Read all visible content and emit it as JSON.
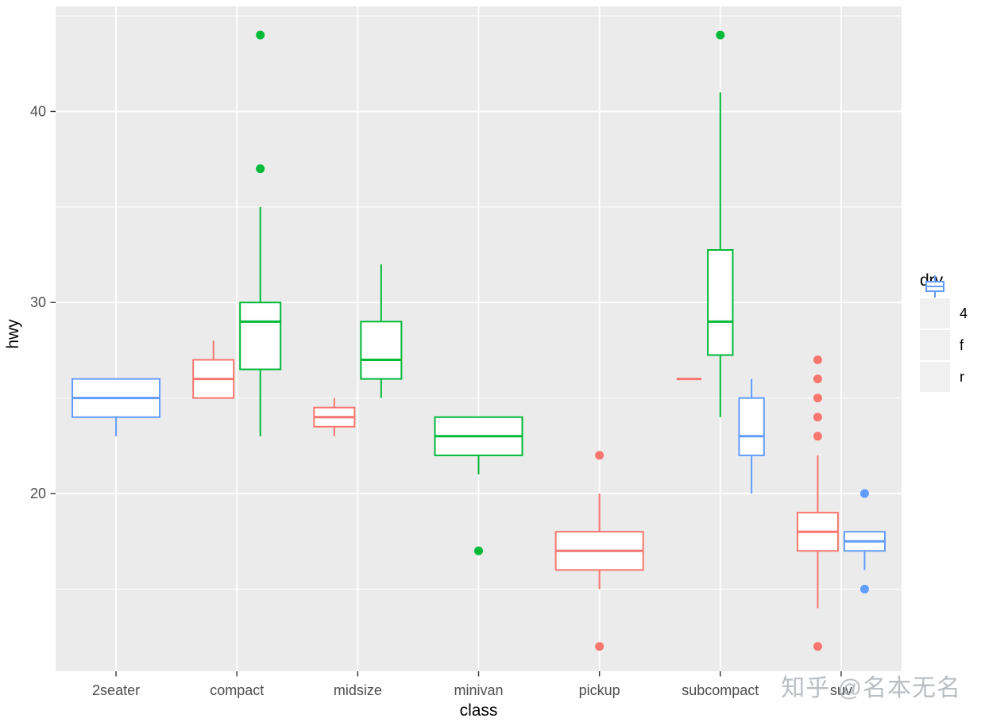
{
  "figure": {
    "panel_bg": "#EBEBEB",
    "grid_color": "#FFFFFF",
    "tick_mark_color": "#333333",
    "tick_label_color": "#4D4D4D",
    "axis_title_color": "#000000"
  },
  "watermark": {
    "text": "知乎 @名本无名",
    "color": "#AEB3B9"
  },
  "chart_data": {
    "type": "boxplot",
    "title": "",
    "xlabel": "class",
    "ylabel": "hwy",
    "categories": [
      "2seater",
      "compact",
      "midsize",
      "minivan",
      "pickup",
      "subcompact",
      "suv"
    ],
    "yticks": [
      20,
      30,
      40
    ],
    "yminor": [
      15,
      25,
      35,
      45
    ],
    "ylim": [
      10.7,
      45.5
    ],
    "grid": true,
    "legend": {
      "title": "drv",
      "position": "right",
      "entries": [
        {
          "label": "4",
          "color": "#F8766D"
        },
        {
          "label": "f",
          "color": "#00BA38"
        },
        {
          "label": "r",
          "color": "#619CFF"
        }
      ]
    },
    "series_colors": {
      "4": "#F8766D",
      "f": "#00BA38",
      "r": "#619CFF"
    },
    "boxes": [
      {
        "class": "2seater",
        "drv": "r",
        "low": 23,
        "q1": 24,
        "median": 25,
        "q3": 26,
        "high": 26,
        "outliers": []
      },
      {
        "class": "compact",
        "drv": "4",
        "low": 25,
        "q1": 25,
        "median": 26,
        "q3": 27,
        "high": 28,
        "outliers": []
      },
      {
        "class": "compact",
        "drv": "f",
        "low": 23,
        "q1": 26.5,
        "median": 29,
        "q3": 30,
        "high": 35,
        "outliers": [
          37,
          44
        ]
      },
      {
        "class": "midsize",
        "drv": "4",
        "low": 23,
        "q1": 23.5,
        "median": 24,
        "q3": 24.5,
        "high": 25,
        "outliers": []
      },
      {
        "class": "midsize",
        "drv": "f",
        "low": 25,
        "q1": 26,
        "median": 27,
        "q3": 29,
        "high": 32,
        "outliers": []
      },
      {
        "class": "minivan",
        "drv": "f",
        "low": 21,
        "q1": 22,
        "median": 23,
        "q3": 24,
        "high": 24,
        "outliers": [
          17
        ]
      },
      {
        "class": "pickup",
        "drv": "4",
        "low": 15,
        "q1": 16,
        "median": 17,
        "q3": 18,
        "high": 20,
        "outliers": [
          22,
          12
        ]
      },
      {
        "class": "subcompact",
        "drv": "4",
        "low": 26,
        "q1": 26,
        "median": 26,
        "q3": 26,
        "high": 26,
        "outliers": []
      },
      {
        "class": "subcompact",
        "drv": "f",
        "low": 24,
        "q1": 27.25,
        "median": 29,
        "q3": 32.75,
        "high": 41,
        "outliers": [
          44
        ]
      },
      {
        "class": "subcompact",
        "drv": "r",
        "low": 20,
        "q1": 22,
        "median": 23,
        "q3": 25,
        "high": 26,
        "outliers": []
      },
      {
        "class": "suv",
        "drv": "4",
        "low": 14,
        "q1": 17,
        "median": 18,
        "q3": 19,
        "high": 22,
        "outliers": [
          27,
          26,
          25,
          24,
          23,
          12
        ]
      },
      {
        "class": "suv",
        "drv": "r",
        "low": 16,
        "q1": 17,
        "median": 17.5,
        "q3": 18,
        "high": 18,
        "outliers": [
          20,
          15
        ]
      }
    ]
  }
}
